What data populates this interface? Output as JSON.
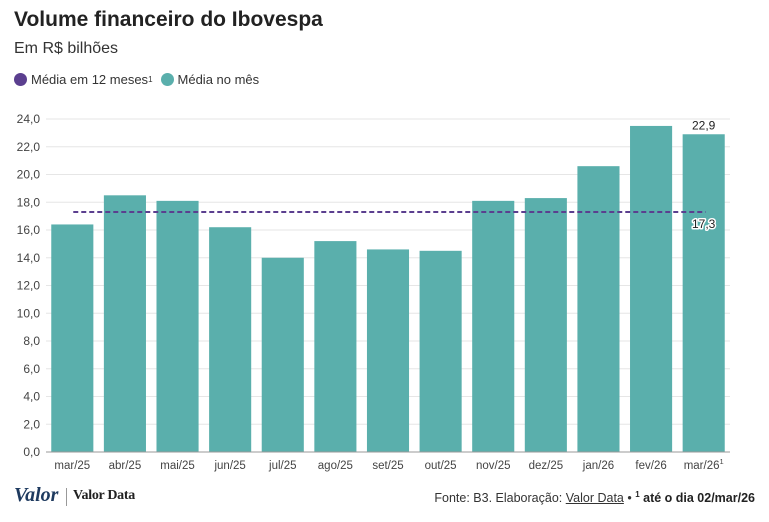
{
  "header": {
    "title": "Volume financeiro do Ibovespa",
    "subtitle": "Em R$ bilhões"
  },
  "legend": {
    "avg12": {
      "label": "Média em 12 meses",
      "sup": "1",
      "color": "#5b3f8f"
    },
    "month": {
      "label": "Média no mês",
      "color": "#5aafac"
    }
  },
  "chart_data": {
    "type": "bar",
    "title": "Volume financeiro do Ibovespa",
    "subtitle": "Em R$ bilhões",
    "categories": [
      "mar/25",
      "abr/25",
      "mai/25",
      "jun/25",
      "jul/25",
      "ago/25",
      "set/25",
      "out/25",
      "nov/25",
      "dez/25",
      "jan/26",
      "fev/26",
      "mar/26"
    ],
    "last_category_sup": "1",
    "series": [
      {
        "name": "Média no mês",
        "type": "bar",
        "color": "#5aafac",
        "values": [
          16.4,
          18.5,
          18.1,
          16.2,
          14.0,
          15.2,
          14.6,
          14.5,
          18.1,
          18.3,
          20.6,
          23.5,
          22.9
        ]
      },
      {
        "name": "Média em 12 meses",
        "type": "line",
        "style": "dashed",
        "color": "#5b3f8f",
        "value": 17.3
      }
    ],
    "yticks": [
      "0,0",
      "2,0",
      "4,0",
      "6,0",
      "8,0",
      "10,0",
      "12,0",
      "14,0",
      "16,0",
      "18,0",
      "20,0",
      "22,0",
      "24,0"
    ],
    "ylim": [
      0,
      24
    ],
    "data_labels": {
      "last_bar": "22,9",
      "avg_line": "17,3"
    },
    "grid": true
  },
  "footer": {
    "logo_valor": "Valor",
    "logo_valor_data": "Valor Data",
    "source_prefix": "Fonte: B3. Elaboração: ",
    "source_link": "Valor Data",
    "source_bullet": " • ",
    "source_note_sup": "1",
    "source_note": " até o dia 02/mar/26"
  }
}
